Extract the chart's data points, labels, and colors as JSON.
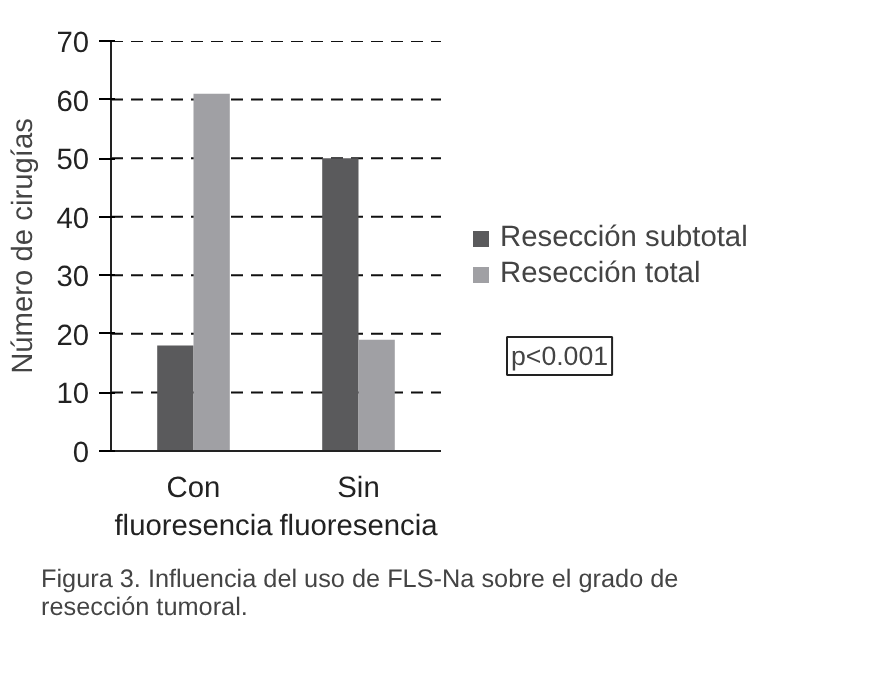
{
  "chart_data": {
    "type": "bar",
    "ylabel": "Número de cirugías",
    "categories": [
      "Con\nfluoresencia",
      "Sin\nfluoresencia"
    ],
    "series": [
      {
        "name": "Resección subtotal",
        "color": "#5a5a5c",
        "values": [
          18,
          50
        ]
      },
      {
        "name": "Resección total",
        "color": "#a0a0a4",
        "values": [
          61,
          19
        ]
      }
    ],
    "ylim": [
      0,
      70
    ],
    "yticks": [
      0,
      10,
      20,
      30,
      40,
      50,
      60,
      70
    ],
    "grid": "y",
    "legend": "right",
    "annotations": [
      "p<0.001",
      "Figura 3. Influencia del uso de FLS-Na sobre el grado de resección tumoral."
    ]
  }
}
